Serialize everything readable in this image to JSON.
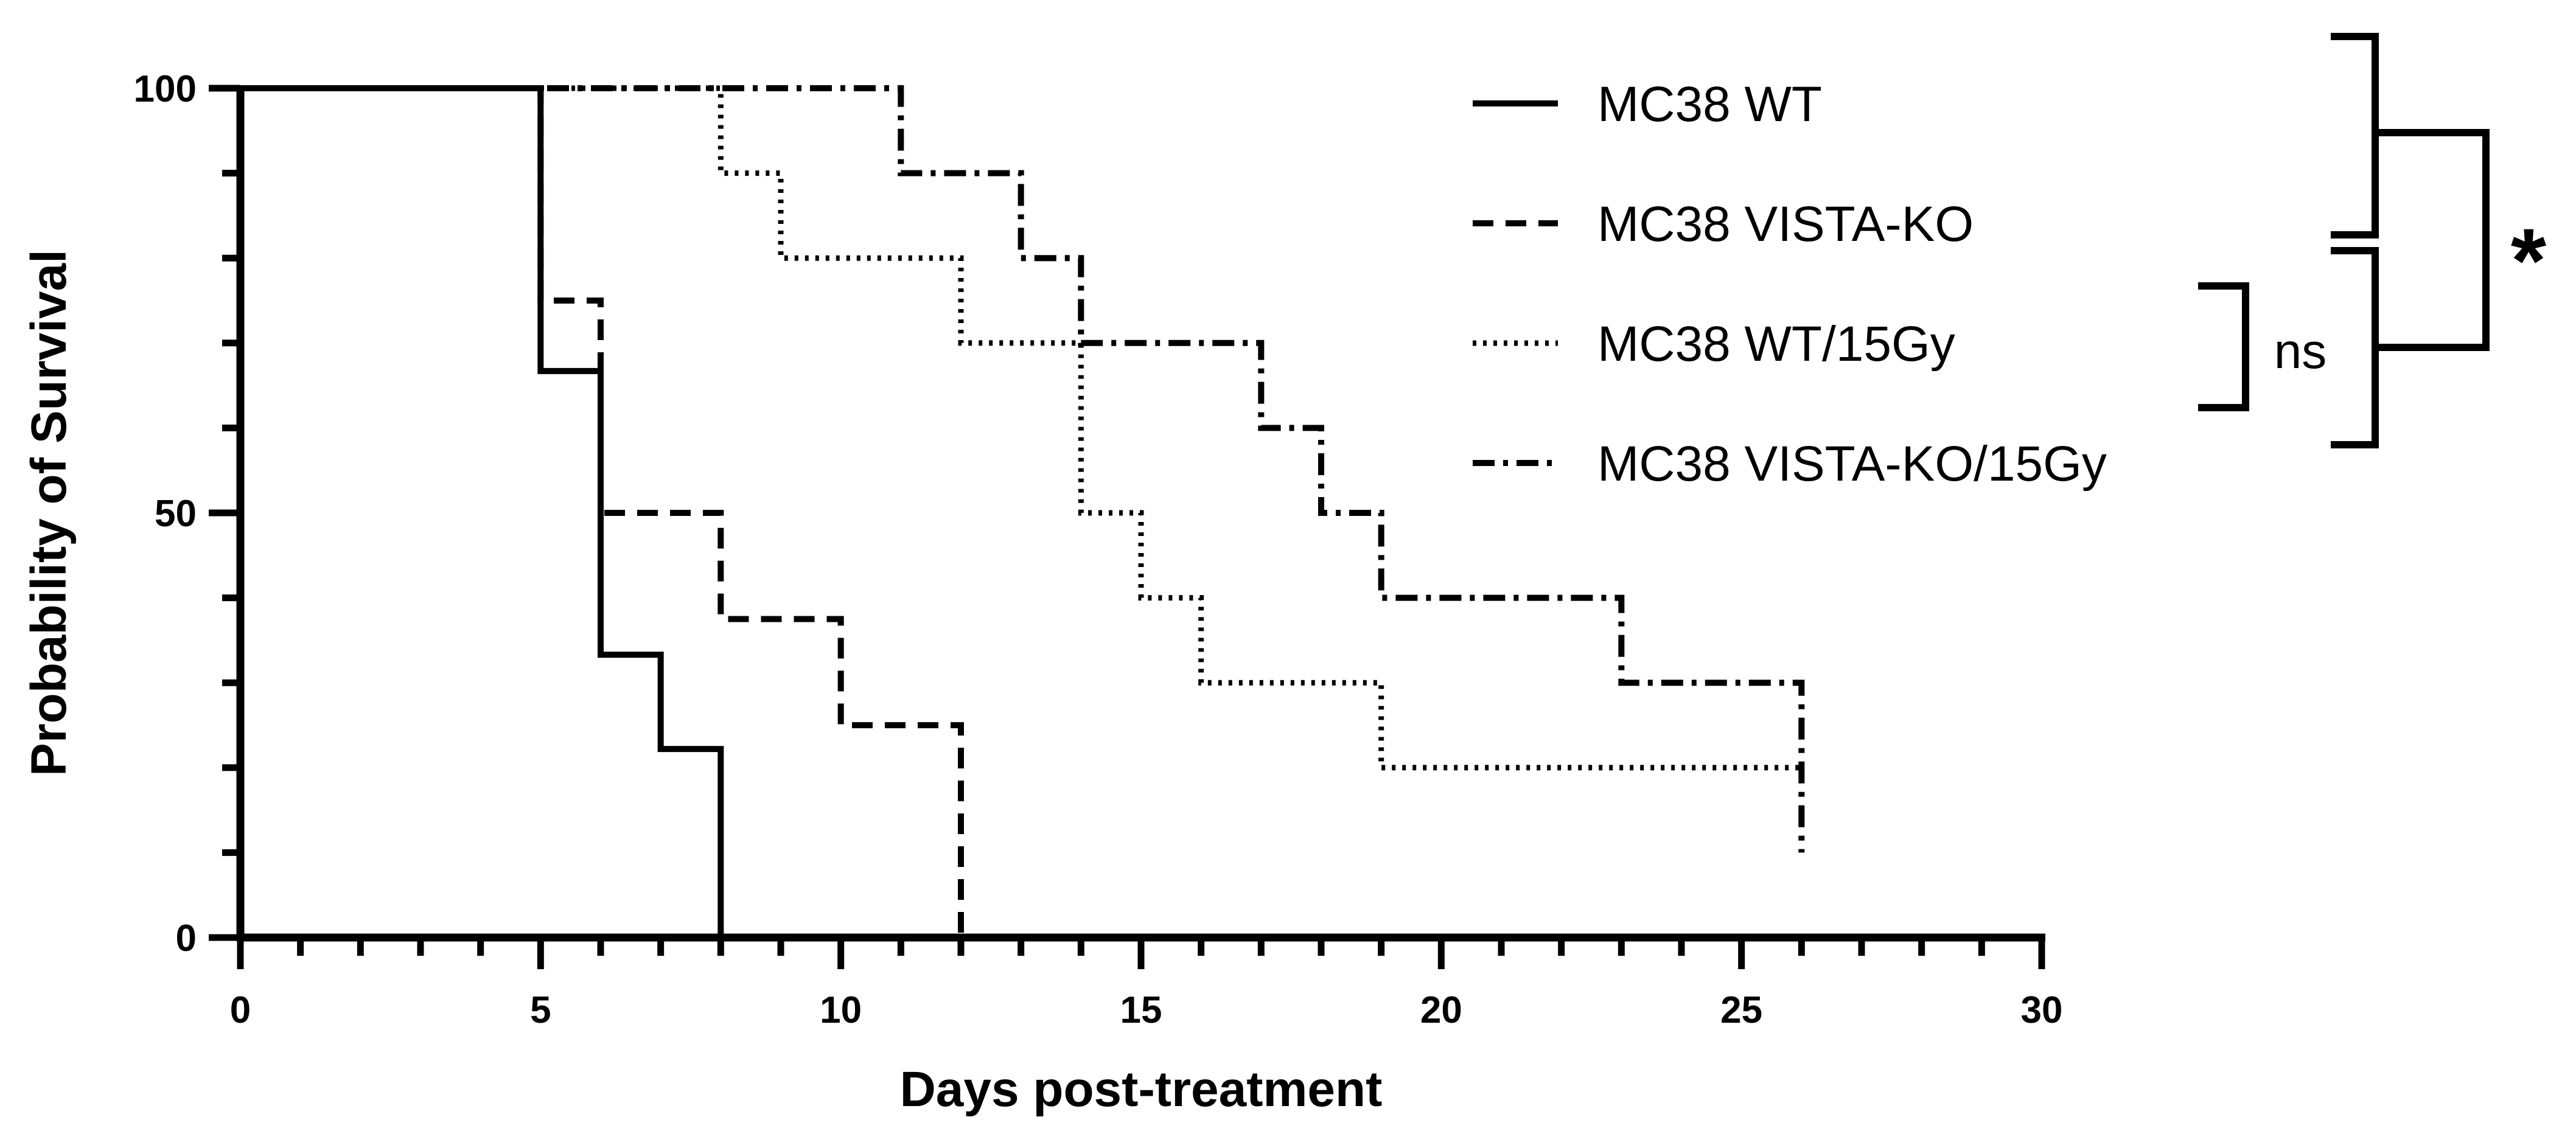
{
  "chart_data": {
    "type": "line",
    "subtype": "kaplan-meier survival step plot",
    "title": "",
    "xlabel": "Days post-treatment",
    "ylabel": "Probability of Survival",
    "xlim": [
      0,
      30
    ],
    "ylim": [
      0,
      100
    ],
    "x_ticks": [
      0,
      5,
      10,
      15,
      20,
      25,
      30
    ],
    "y_ticks": [
      0,
      50,
      100
    ],
    "x_minor_step": 1,
    "y_minor_step": 10,
    "grid": false,
    "legend_position": "top-right",
    "series": [
      {
        "name": "MC38 WT",
        "line_style": "solid",
        "x": [
          0,
          5,
          6,
          7,
          8
        ],
        "y": [
          100,
          66.7,
          33.3,
          22.2,
          0
        ]
      },
      {
        "name": "MC38 VISTA-KO",
        "line_style": "dashed",
        "x": [
          0,
          5,
          6,
          8,
          10,
          12
        ],
        "y": [
          100,
          75,
          50,
          37.5,
          25,
          0
        ]
      },
      {
        "name": "MC38 WT/15Gy",
        "line_style": "dotted",
        "x": [
          0,
          8,
          9,
          12,
          14,
          15,
          16,
          19,
          26
        ],
        "y": [
          100,
          90,
          80,
          70,
          50,
          40,
          30,
          20,
          20
        ]
      },
      {
        "name": "MC38 VISTA-KO/15Gy",
        "line_style": "dashdot",
        "x": [
          0,
          11,
          13,
          14,
          17,
          18,
          19,
          23,
          26
        ],
        "y": [
          100,
          90,
          80,
          70,
          60,
          50,
          40,
          30,
          10
        ]
      }
    ],
    "significance": [
      {
        "label": "ns",
        "compares": [
          "MC38 WT/15Gy",
          "MC38 VISTA-KO/15Gy"
        ]
      },
      {
        "label": "*",
        "compares": [
          "MC38 WT + MC38 VISTA-KO",
          "MC38 WT/15Gy + MC38 VISTA-KO/15Gy"
        ]
      }
    ]
  }
}
